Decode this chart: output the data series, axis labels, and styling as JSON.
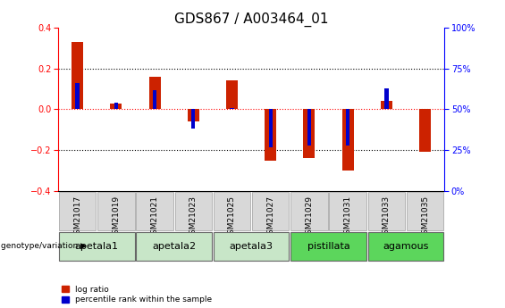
{
  "title": "GDS867 / A003464_01",
  "samples": [
    "GSM21017",
    "GSM21019",
    "GSM21021",
    "GSM21023",
    "GSM21025",
    "GSM21027",
    "GSM21029",
    "GSM21031",
    "GSM21033",
    "GSM21035"
  ],
  "log_ratio": [
    0.33,
    0.03,
    0.16,
    -0.06,
    0.14,
    -0.25,
    -0.24,
    -0.3,
    0.04,
    -0.21
  ],
  "percentile_rank_raw": [
    66,
    54,
    62,
    38,
    51,
    27,
    28,
    28,
    63,
    50
  ],
  "ylim": [
    -0.4,
    0.4
  ],
  "y2lim": [
    0,
    100
  ],
  "yticks": [
    -0.4,
    -0.2,
    0.0,
    0.2,
    0.4
  ],
  "y2ticks": [
    0,
    25,
    50,
    75,
    100
  ],
  "y2ticklabels": [
    "0%",
    "25%",
    "50%",
    "75%",
    "100%"
  ],
  "groups": [
    {
      "label": "apetala1",
      "start": 0,
      "end": 2,
      "color": "#c8e6c8"
    },
    {
      "label": "apetala2",
      "start": 2,
      "end": 4,
      "color": "#c8e6c8"
    },
    {
      "label": "apetala3",
      "start": 4,
      "end": 6,
      "color": "#c8e6c8"
    },
    {
      "label": "pistillata",
      "start": 6,
      "end": 8,
      "color": "#5cd65c"
    },
    {
      "label": "agamous",
      "start": 8,
      "end": 10,
      "color": "#5cd65c"
    }
  ],
  "bar_color_red": "#cc2200",
  "bar_color_blue": "#0000cc",
  "bar_width": 0.3,
  "blue_bar_width": 0.1,
  "legend_label_red": "log ratio",
  "legend_label_blue": "percentile rank within the sample",
  "genotype_label": "genotype/variation",
  "title_fontsize": 11,
  "tick_fontsize": 7,
  "label_fontsize": 7,
  "group_label_fontsize": 8,
  "sample_box_color": "#d8d8d8",
  "sample_box_edge": "#aaaaaa"
}
